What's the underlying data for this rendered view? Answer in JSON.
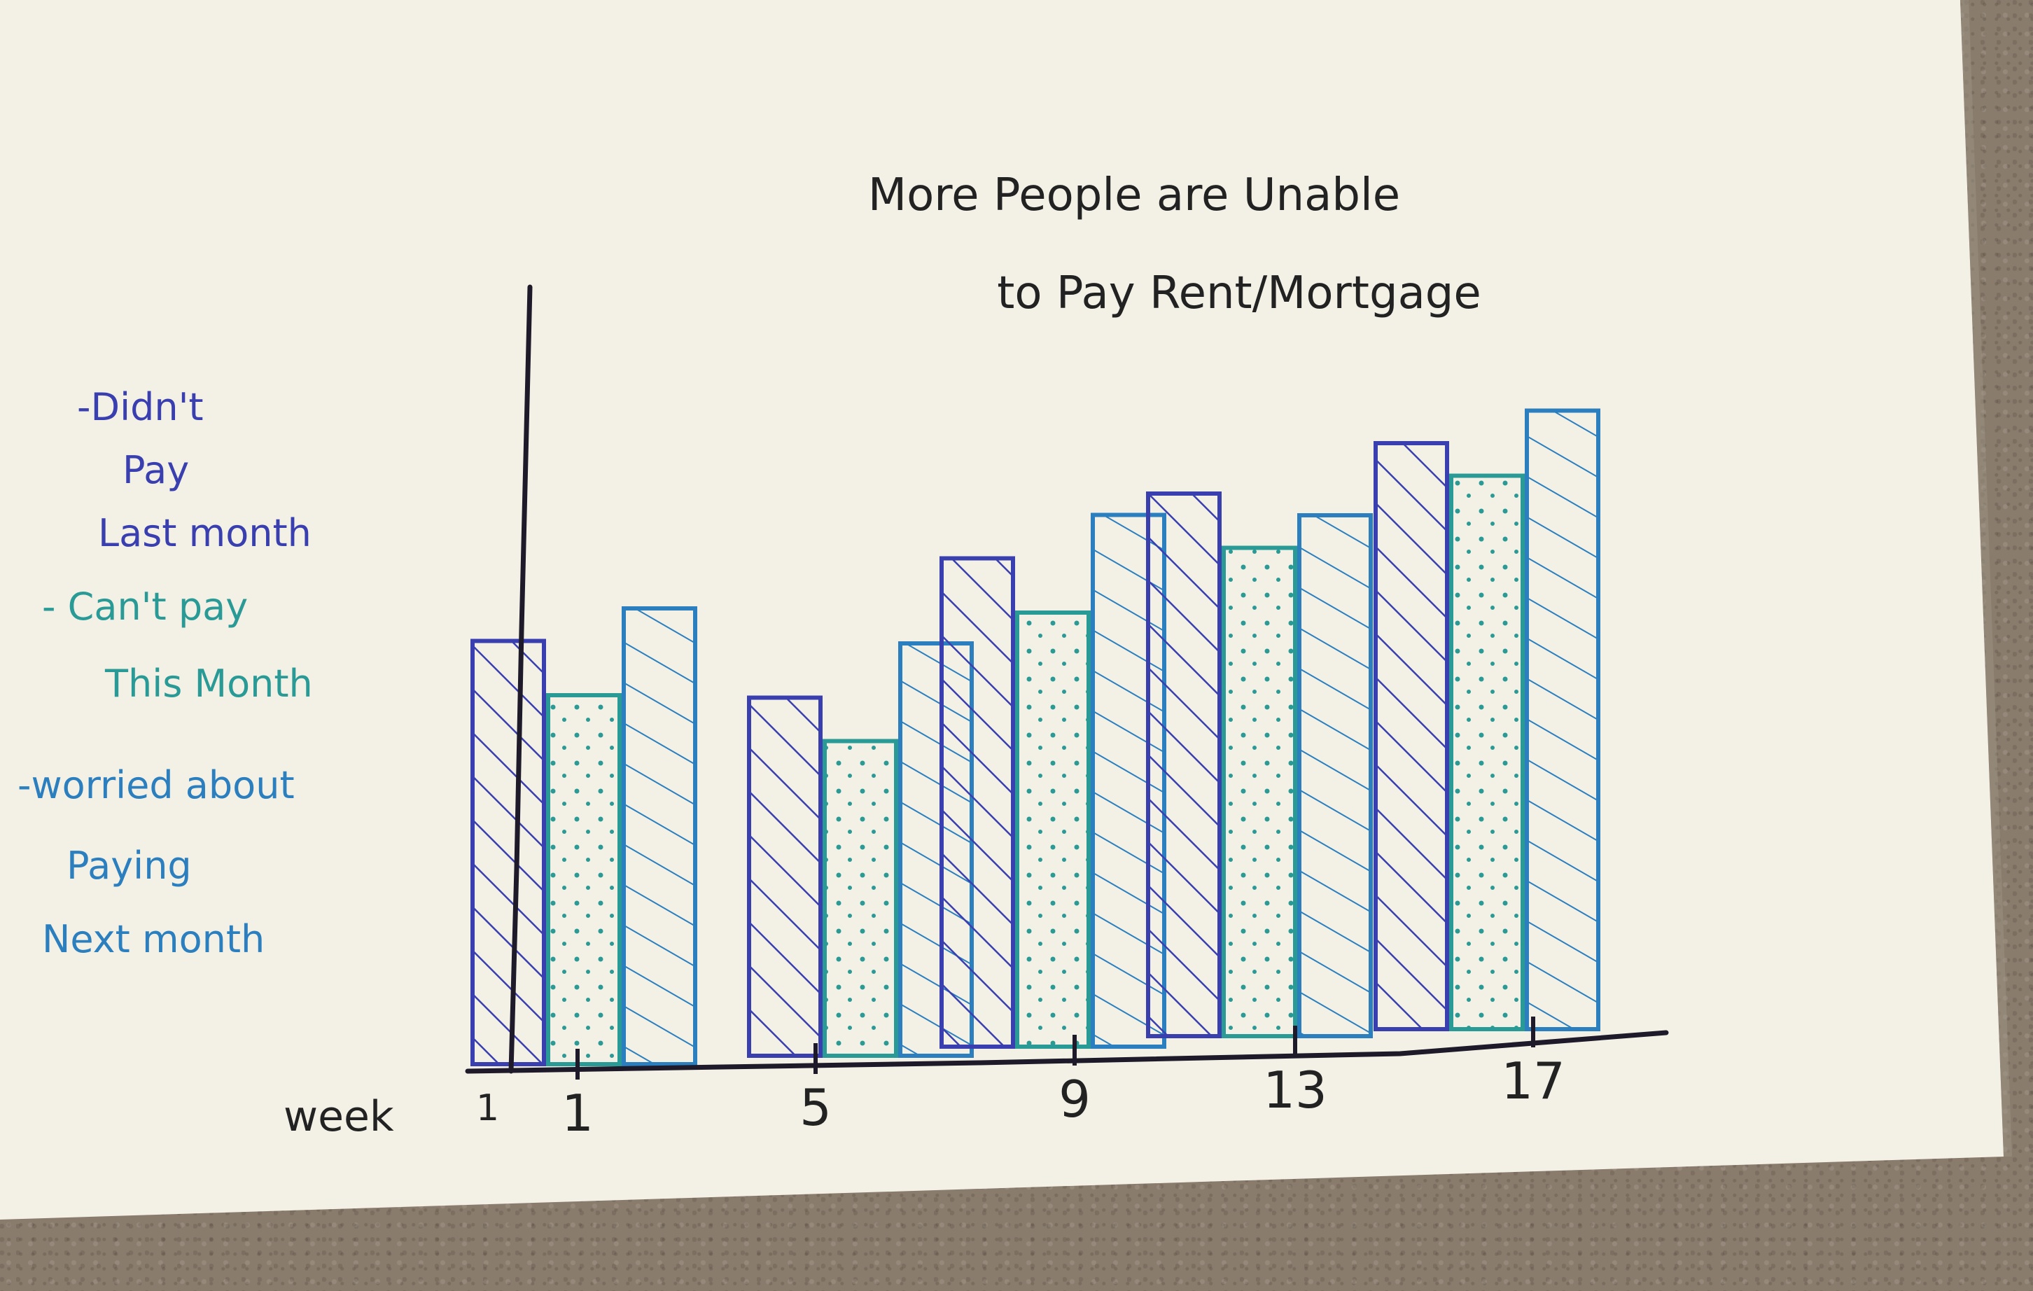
{
  "chart_data": {
    "type": "bar",
    "title": "More People are Unable to Pay Rent/Mortgage",
    "xlabel": "week",
    "x_axis_prefix_tick": "1",
    "ticks": [
      "1",
      "5",
      "9",
      "13",
      "17"
    ],
    "categories": [
      "1",
      "5",
      "9",
      "13",
      "17"
    ],
    "series": [
      {
        "name": "-Didn't Pay Last Month",
        "color": "#3a3fb0",
        "pattern": "hatch",
        "values": [
          39,
          33,
          45,
          50,
          54
        ]
      },
      {
        "name": "- Can't pay This Month",
        "color": "#2a9a96",
        "pattern": "dots",
        "values": [
          34,
          29,
          40,
          45,
          51
        ]
      },
      {
        "name": "-worried about Paying Next month",
        "color": "#2b7fbf",
        "pattern": "hatch",
        "values": [
          42,
          38,
          49,
          48,
          57
        ]
      }
    ],
    "legend_position": "left",
    "grid": false
  }
}
